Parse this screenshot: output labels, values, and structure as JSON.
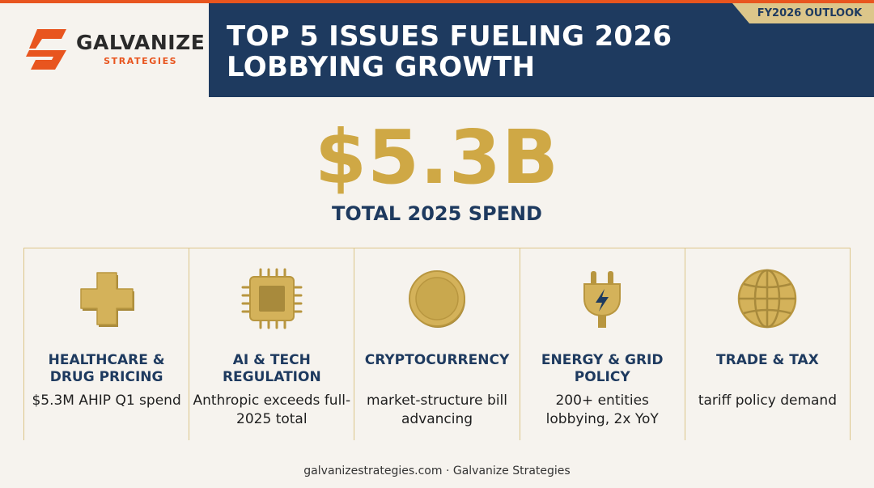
{
  "brand": {
    "name": "GALVANIZE",
    "sub": "STRATEGIES",
    "accent": "#e8551f",
    "navy": "#1e3a5f",
    "gold": "#cfa845"
  },
  "header": {
    "title": "TOP 5 ISSUES FUELING 2026 LOBBYING GROWTH",
    "badge": "FY2026 OUTLOOK"
  },
  "hero": {
    "value": "$5.3B",
    "label": "TOTAL 2025 SPEND"
  },
  "issues": [
    {
      "icon": "medical-cross-icon",
      "title": "HEALTHCARE & DRUG PRICING",
      "desc": "$5.3M AHIP Q1 spend"
    },
    {
      "icon": "microchip-icon",
      "title": "AI & TECH REGULATION",
      "desc": "Anthropic exceeds full-2025 total"
    },
    {
      "icon": "coin-icon",
      "title": "CRYPTOCURRENCY",
      "desc": "market-structure bill advancing"
    },
    {
      "icon": "power-plug-icon",
      "title": "ENERGY & GRID POLICY",
      "desc": "200+ entities lobbying, 2x YoY"
    },
    {
      "icon": "globe-icon",
      "title": "TRADE & TAX",
      "desc": "tariff policy demand"
    }
  ],
  "footer": "galvanizestrategies.com · Galvanize Strategies"
}
